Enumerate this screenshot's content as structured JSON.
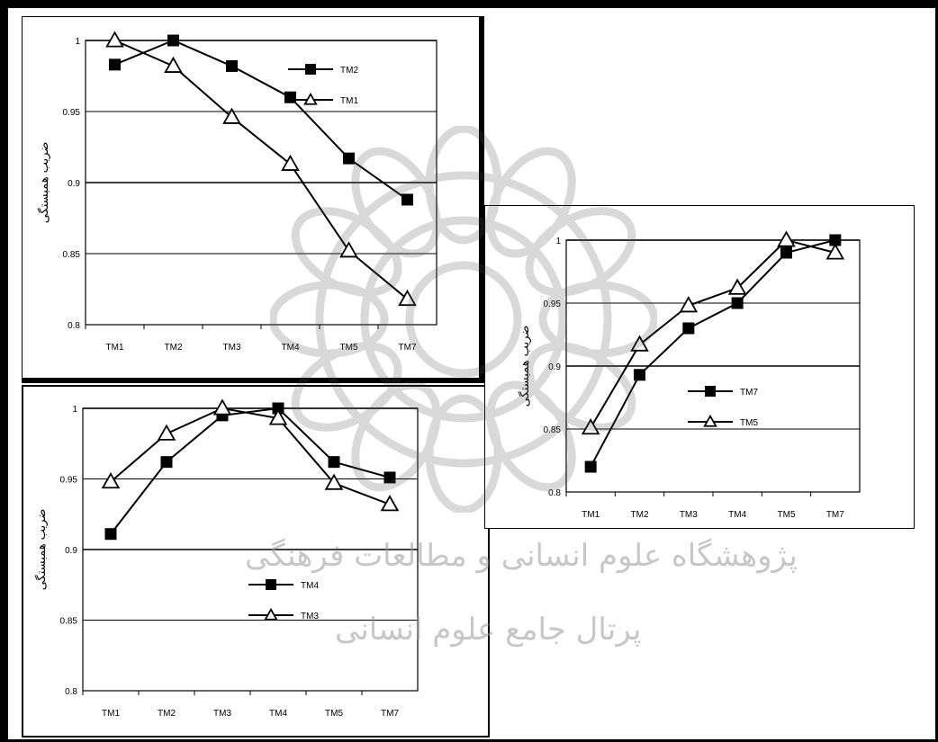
{
  "watermark": {
    "line1": "پژوهشگاه علوم انسانی و مطالعات فرهنگی",
    "line2": "پرتال جامع علوم انسانی"
  },
  "chart_data": [
    {
      "id": "a",
      "type": "line",
      "ylabel": "ضریب همبستگی",
      "categories": [
        "TM1",
        "TM2",
        "TM3",
        "TM4",
        "TM5",
        "TM7"
      ],
      "ylim": [
        0.8,
        1
      ],
      "yticks": [
        "0.8",
        "0.85",
        "0.9",
        "0.95",
        "1"
      ],
      "legend_position": "top-right",
      "series": [
        {
          "name": "TM2",
          "marker": "square",
          "values": [
            0.983,
            1.0,
            0.982,
            0.96,
            0.917,
            0.888
          ]
        },
        {
          "name": "TM1",
          "marker": "triangle",
          "values": [
            1.0,
            0.982,
            0.946,
            0.913,
            0.852,
            0.818
          ]
        }
      ]
    },
    {
      "id": "b",
      "type": "line",
      "ylabel": "ضریب همبستگی",
      "categories": [
        "TM1",
        "TM2",
        "TM3",
        "TM4",
        "TM5",
        "TM7"
      ],
      "ylim": [
        0.8,
        1
      ],
      "yticks": [
        "0.8",
        "0.85",
        "0.9",
        "0.95",
        "1"
      ],
      "legend_position": "center-right",
      "series": [
        {
          "name": "TM4",
          "marker": "square",
          "values": [
            0.911,
            0.962,
            0.995,
            1.0,
            0.962,
            0.951
          ]
        },
        {
          "name": "TM3",
          "marker": "triangle",
          "values": [
            0.948,
            0.982,
            1.0,
            0.993,
            0.947,
            0.932
          ]
        }
      ]
    },
    {
      "id": "c",
      "type": "line",
      "ylabel": "ضریب همبستگی",
      "categories": [
        "TM1",
        "TM2",
        "TM3",
        "TM4",
        "TM5",
        "TM7"
      ],
      "ylim": [
        0.8,
        1
      ],
      "yticks": [
        "0.8",
        "0.85",
        "0.9",
        "0.95",
        "1"
      ],
      "legend_position": "center-right",
      "series": [
        {
          "name": "TM7",
          "marker": "square",
          "values": [
            0.82,
            0.893,
            0.93,
            0.95,
            0.99,
            1.0
          ]
        },
        {
          "name": "TM5",
          "marker": "triangle",
          "values": [
            0.851,
            0.917,
            0.948,
            0.962,
            1.0,
            0.99
          ]
        }
      ]
    }
  ]
}
